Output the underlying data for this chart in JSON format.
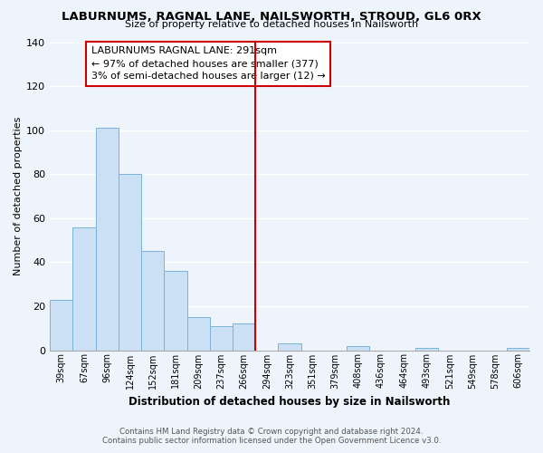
{
  "title": "LABURNUMS, RAGNAL LANE, NAILSWORTH, STROUD, GL6 0RX",
  "subtitle": "Size of property relative to detached houses in Nailsworth",
  "xlabel": "Distribution of detached houses by size in Nailsworth",
  "ylabel": "Number of detached properties",
  "bar_color": "#cce0f5",
  "bar_edge_color": "#7ab4d8",
  "categories": [
    "39sqm",
    "67sqm",
    "96sqm",
    "124sqm",
    "152sqm",
    "181sqm",
    "209sqm",
    "237sqm",
    "266sqm",
    "294sqm",
    "323sqm",
    "351sqm",
    "379sqm",
    "408sqm",
    "436sqm",
    "464sqm",
    "493sqm",
    "521sqm",
    "549sqm",
    "578sqm",
    "606sqm"
  ],
  "values": [
    23,
    56,
    101,
    80,
    45,
    36,
    15,
    11,
    12,
    0,
    3,
    0,
    0,
    2,
    0,
    0,
    1,
    0,
    0,
    0,
    1
  ],
  "vline_color": "#cc0000",
  "annotation_title": "LABURNUMS RAGNAL LANE: 291sqm",
  "annotation_line1": "← 97% of detached houses are smaller (377)",
  "annotation_line2": "3% of semi-detached houses are larger (12) →",
  "ylim": [
    0,
    140
  ],
  "yticks": [
    0,
    20,
    40,
    60,
    80,
    100,
    120,
    140
  ],
  "footnote1": "Contains HM Land Registry data © Crown copyright and database right 2024.",
  "footnote2": "Contains public sector information licensed under the Open Government Licence v3.0.",
  "background_color": "#eef4fb"
}
